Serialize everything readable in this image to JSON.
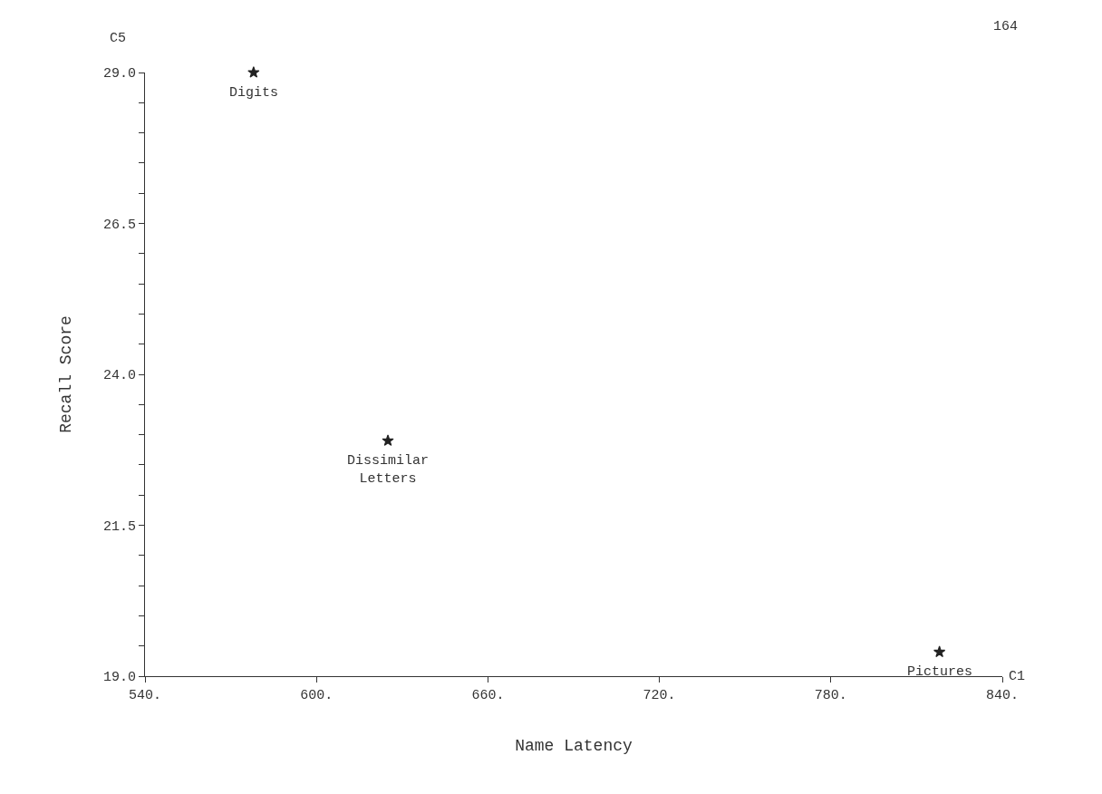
{
  "chart_data": {
    "type": "scatter",
    "xlabel": "Name Latency",
    "ylabel": "Recall Score",
    "x": [
      578,
      625,
      818
    ],
    "values": [
      29.0,
      22.9,
      19.4
    ],
    "color": "#222222",
    "marker": "star",
    "xlim": [
      540,
      840
    ],
    "xticks": [
      {
        "value": 540,
        "label": "540."
      },
      {
        "value": 600,
        "label": "600."
      },
      {
        "value": 660,
        "label": "660."
      },
      {
        "value": 720,
        "label": "720."
      },
      {
        "value": 780,
        "label": "780."
      },
      {
        "value": 840,
        "label": "840."
      }
    ],
    "ylim": [
      19.0,
      29.0
    ],
    "yticks": [
      {
        "value": 19.0,
        "label": "19.0"
      },
      {
        "value": 19.5,
        "label": null
      },
      {
        "value": 20.0,
        "label": null
      },
      {
        "value": 20.5,
        "label": null
      },
      {
        "value": 21.0,
        "label": null
      },
      {
        "value": 21.5,
        "label": "21.5"
      },
      {
        "value": 22.0,
        "label": null
      },
      {
        "value": 22.5,
        "label": null
      },
      {
        "value": 23.0,
        "label": null
      },
      {
        "value": 23.5,
        "label": null
      },
      {
        "value": 24.0,
        "label": "24.0"
      },
      {
        "value": 24.5,
        "label": null
      },
      {
        "value": 25.0,
        "label": null
      },
      {
        "value": 25.5,
        "label": null
      },
      {
        "value": 26.0,
        "label": null
      },
      {
        "value": 26.5,
        "label": "26.5"
      },
      {
        "value": 27.0,
        "label": null
      },
      {
        "value": 27.5,
        "label": null
      },
      {
        "value": 28.0,
        "label": null
      },
      {
        "value": 28.5,
        "label": null
      },
      {
        "value": 29.0,
        "label": "29.0"
      }
    ],
    "annotations": [
      {
        "text": "Digits",
        "x": 578,
        "y": 29.0
      },
      {
        "text": "Dissimilar\nLetters",
        "x": 625,
        "y": 22.9
      },
      {
        "text": "Pictures",
        "x": 818,
        "y": 19.4
      },
      "C5",
      "C1",
      "164"
    ]
  }
}
